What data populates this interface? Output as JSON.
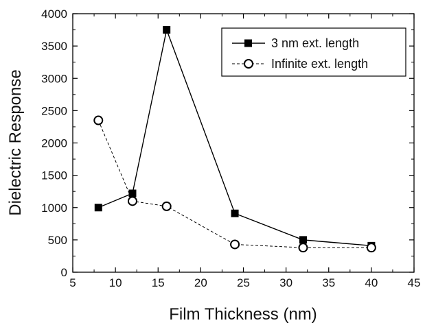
{
  "chart_data": {
    "type": "line",
    "xlabel": "Film Thickness (nm)",
    "ylabel": "Dielectric Response",
    "xlim": [
      5,
      45
    ],
    "ylim": [
      0,
      4000
    ],
    "x_ticks": [
      5,
      10,
      15,
      20,
      25,
      30,
      35,
      40,
      45
    ],
    "y_ticks": [
      0,
      500,
      1000,
      1500,
      2000,
      2500,
      3000,
      3500,
      4000
    ],
    "x_tick_labels": [
      "5",
      "10",
      "15",
      "20",
      "25",
      "30",
      "35",
      "40",
      "45"
    ],
    "y_tick_labels": [
      "0",
      "500",
      "1000",
      "1500",
      "2000",
      "2500",
      "3000",
      "3500",
      "4000"
    ],
    "grid": false,
    "legend_position": "top-right",
    "series": [
      {
        "name": "3 nm ext. length",
        "marker": "filled-square",
        "line": "solid",
        "color": "#000000",
        "x": [
          8,
          12,
          16,
          24,
          32,
          40
        ],
        "y": [
          1000,
          1220,
          3750,
          910,
          500,
          410
        ]
      },
      {
        "name": "Infinite ext. length",
        "marker": "open-circle",
        "line": "dashed",
        "color": "#000000",
        "x": [
          8,
          12,
          16,
          24,
          32,
          40
        ],
        "y": [
          2350,
          1100,
          1020,
          430,
          380,
          380
        ]
      }
    ]
  }
}
